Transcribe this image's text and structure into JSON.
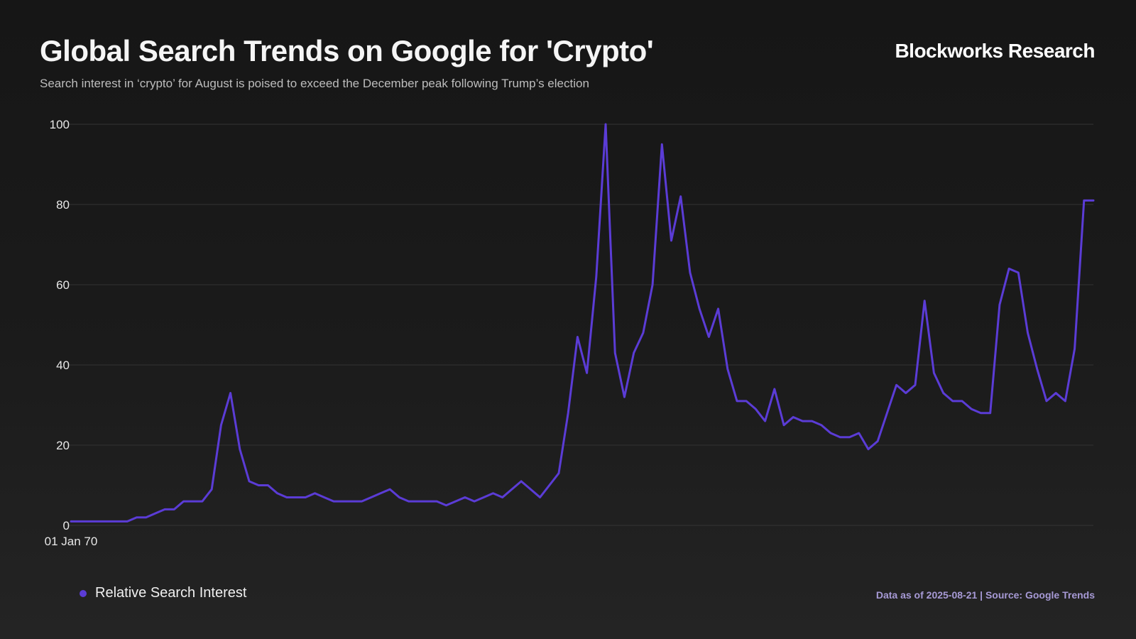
{
  "header": {
    "title": "Global Search Trends on Google for 'Crypto'",
    "subtitle": "Search interest in ‘crypto’ for August is poised to exceed the December peak following Trump’s election",
    "brand": "Blockworks Research"
  },
  "footer": {
    "source": "Data as of 2025-08-21 | Source: Google Trends"
  },
  "colors": {
    "line": "#5b3cd6",
    "grid": "#333333"
  },
  "chart_data": {
    "type": "line",
    "xlabel": "",
    "ylabel": "",
    "ylim": [
      0,
      100
    ],
    "yticks": [
      0,
      20,
      40,
      60,
      80,
      100
    ],
    "xtick_label": "01 Jan 70",
    "grid": true,
    "legend_position": "bottom-left",
    "series": [
      {
        "name": "Relative Search Interest",
        "x": [
          0,
          1,
          2,
          3,
          4,
          5,
          6,
          7,
          8,
          9,
          10,
          11,
          12,
          13,
          14,
          15,
          16,
          17,
          18,
          19,
          20,
          21,
          22,
          23,
          24,
          25,
          26,
          27,
          28,
          29,
          30,
          31,
          32,
          33,
          34,
          35,
          36,
          37,
          38,
          39,
          40,
          41,
          42,
          43,
          44,
          45,
          46,
          47,
          48,
          49,
          50,
          51,
          52,
          53,
          54,
          55,
          56,
          57,
          58,
          59,
          60,
          61,
          62,
          63,
          64,
          65,
          66,
          67,
          68,
          69,
          70,
          71,
          72,
          73,
          74,
          75,
          76,
          77,
          78,
          79,
          80,
          81,
          82,
          83,
          84,
          85,
          86,
          87,
          88,
          89,
          90,
          91,
          92,
          93,
          94,
          95,
          96,
          97,
          98,
          99,
          100,
          101,
          102,
          103,
          104,
          105,
          106,
          107,
          108,
          109
        ],
        "values": [
          1,
          1,
          1,
          1,
          1,
          1,
          1,
          2,
          2,
          3,
          4,
          4,
          6,
          6,
          6,
          9,
          25,
          33,
          19,
          11,
          10,
          10,
          8,
          7,
          7,
          7,
          8,
          7,
          6,
          6,
          6,
          6,
          7,
          8,
          9,
          7,
          6,
          6,
          6,
          6,
          5,
          6,
          7,
          6,
          7,
          8,
          7,
          9,
          11,
          9,
          7,
          10,
          13,
          28,
          47,
          38,
          62,
          100,
          43,
          32,
          43,
          48,
          60,
          95,
          71,
          82,
          63,
          54,
          47,
          54,
          39,
          31,
          31,
          29,
          26,
          34,
          25,
          27,
          26,
          26,
          25,
          23,
          22,
          22,
          23,
          19,
          21,
          28,
          35,
          33,
          35,
          56,
          38,
          33,
          31,
          31,
          29,
          28,
          28,
          55,
          64,
          63,
          48,
          39,
          31,
          33,
          31,
          44,
          81,
          81
        ]
      }
    ]
  }
}
